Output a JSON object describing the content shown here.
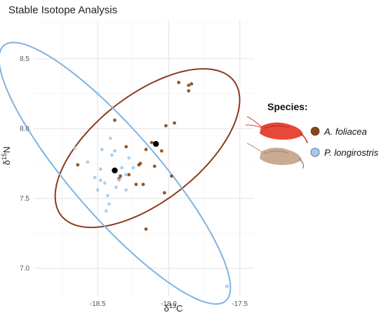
{
  "chart_data": {
    "type": "scatter",
    "title": "Stable Isotope Analysis",
    "xlabel_base": "δ",
    "xlabel_sup": "13",
    "xlabel_tail": "C",
    "ylabel_base": "δ",
    "ylabel_sup": "15",
    "ylabel_tail": "N",
    "xlim": [
      -18.95,
      -17.4
    ],
    "ylim": [
      6.8,
      8.78
    ],
    "xticks": [
      -18.5,
      -18.0,
      -17.5
    ],
    "xtick_labels": [
      "-18.5",
      "-18.0",
      "-17.5"
    ],
    "yticks": [
      7.0,
      7.5,
      8.0,
      8.5
    ],
    "ytick_labels": [
      "7.0",
      "7.5",
      "8.0",
      "8.5"
    ],
    "grid": true,
    "legend": {
      "title": "Species:",
      "position": "right",
      "entries": [
        {
          "name": "A. foliacea",
          "color": "#8B4513"
        },
        {
          "name": "P. longirostris",
          "color": "#9ecbf2"
        }
      ]
    },
    "series": [
      {
        "name": "A. foliacea",
        "color": "#8B4513",
        "ellipse_color": "#8B3A1E",
        "ellipse": {
          "cx": -18.15,
          "cy": 7.86,
          "rx": 0.77,
          "ry": 0.38,
          "angle_deg": 38
        },
        "mean": {
          "x": -18.09,
          "y": 7.89
        },
        "x": [
          -18.64,
          -18.38,
          -18.34,
          -18.3,
          -18.28,
          -18.2,
          -18.18,
          -18.05,
          -18.02,
          -17.96,
          -17.93,
          -17.86,
          -17.86,
          -17.84,
          -18.12,
          -18.16,
          -18.21,
          -18.23,
          -18.1,
          -18.03,
          -17.98,
          -18.16,
          -18.35
        ],
        "y": [
          7.74,
          8.06,
          7.66,
          7.87,
          7.67,
          7.75,
          7.6,
          7.84,
          8.02,
          8.04,
          8.33,
          8.31,
          8.27,
          8.32,
          7.9,
          7.85,
          7.74,
          7.6,
          7.73,
          7.54,
          7.66,
          7.28,
          7.64
        ]
      },
      {
        "name": "P. longirostris",
        "color": "#9ecbf2",
        "ellipse_color": "#7fb3e0",
        "ellipse": {
          "cx": -18.38,
          "cy": 7.68,
          "rx": 1.19,
          "ry": 0.31,
          "angle_deg": -49
        },
        "mean": {
          "x": -18.38,
          "y": 7.7
        },
        "x": [
          -18.66,
          -18.57,
          -18.52,
          -18.5,
          -18.48,
          -18.45,
          -18.43,
          -18.42,
          -18.4,
          -18.38,
          -18.37,
          -18.35,
          -18.33,
          -18.3,
          -18.28,
          -18.25,
          -18.48,
          -18.44,
          -18.5,
          -18.41,
          -18.47,
          -18.3,
          -17.59
        ],
        "y": [
          7.86,
          7.76,
          7.65,
          7.56,
          7.71,
          7.61,
          7.52,
          7.46,
          7.81,
          7.84,
          7.58,
          7.63,
          7.72,
          7.67,
          7.79,
          7.72,
          7.63,
          7.41,
          8.25,
          7.93,
          7.85,
          7.56,
          6.87
        ]
      }
    ]
  }
}
